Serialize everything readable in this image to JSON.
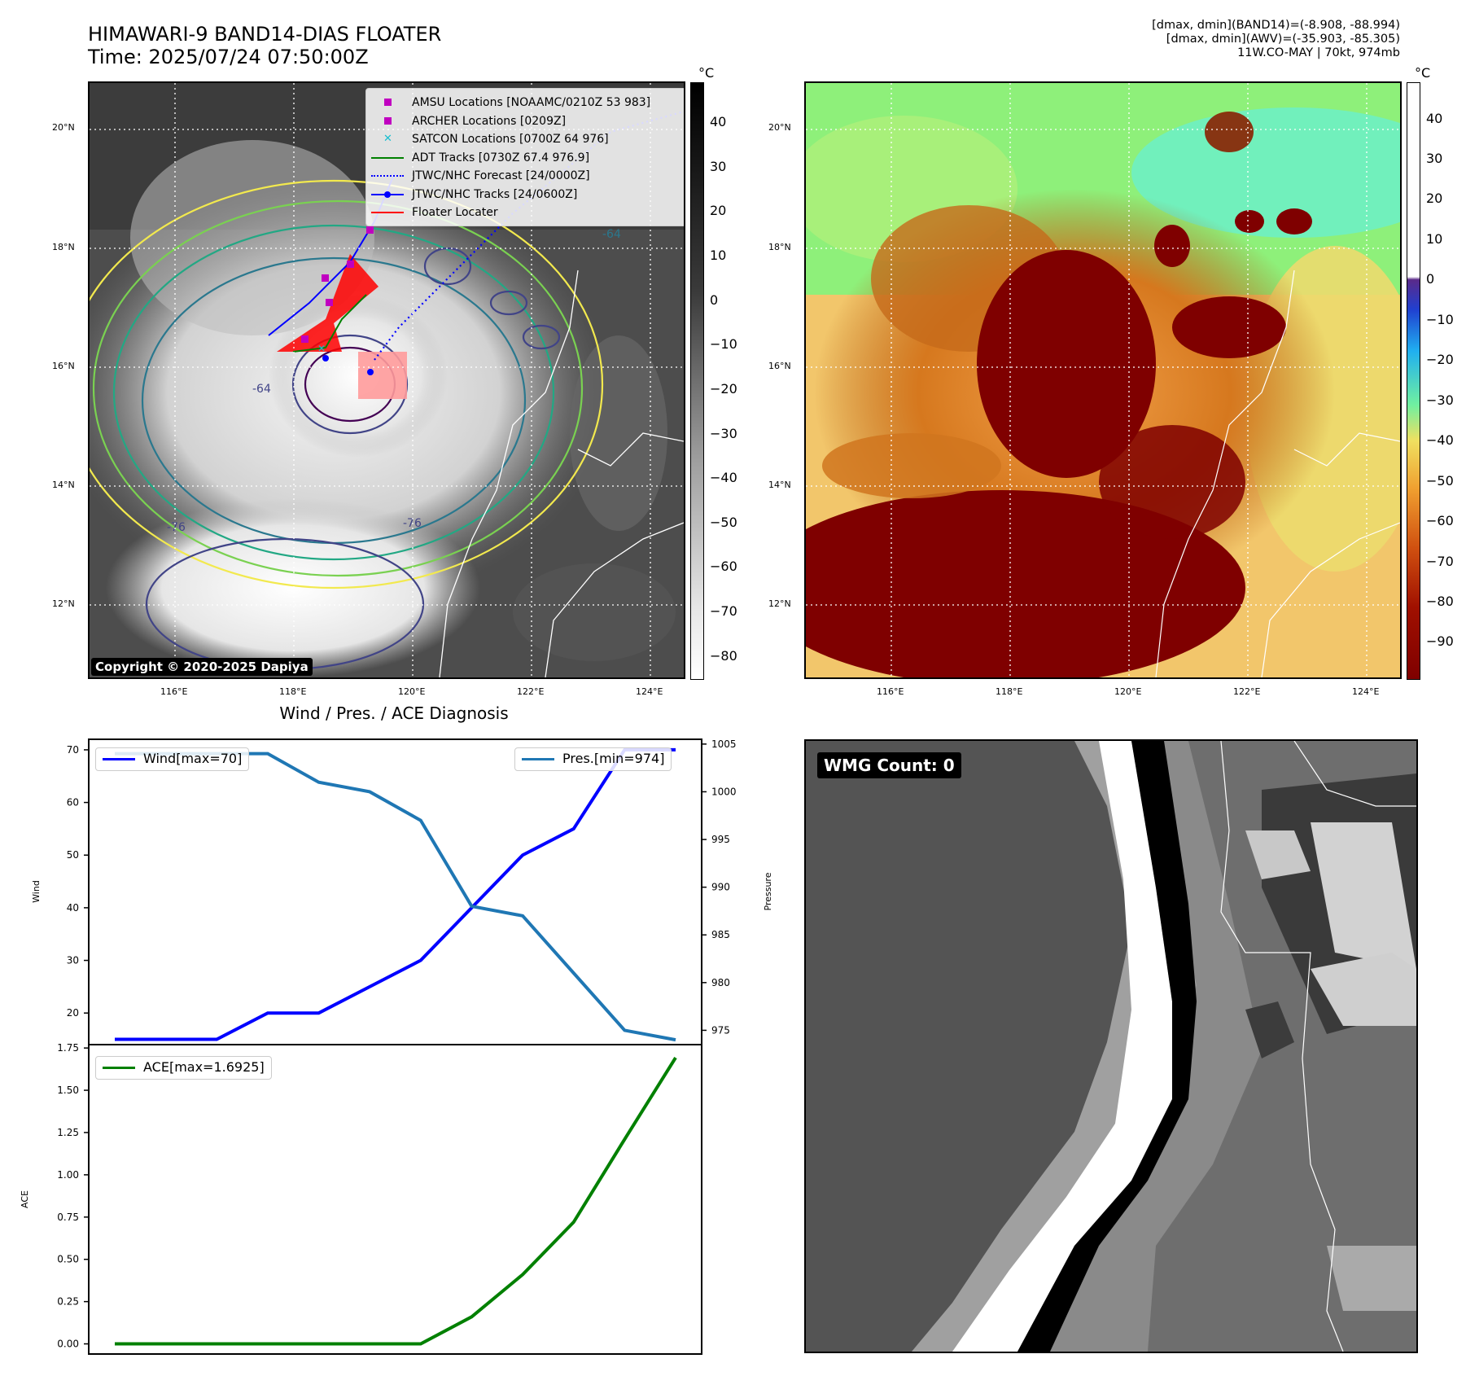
{
  "header": {
    "title_line1": "HIMAWARI-9 BAND14-DIAS FLOATER",
    "title_line2": "Time: 2025/07/24 07:50:00Z",
    "info_line1": "[dmax, dmin](BAND14)=(-8.908, -88.994)",
    "info_line2": "[dmax, dmin](AWV)=(-35.903, -85.305)",
    "info_line3": "11W.CO-MAY | 70kt, 974mb"
  },
  "map_axes": {
    "lon_ticks": [
      "116°E",
      "118°E",
      "120°E",
      "122°E",
      "124°E"
    ],
    "lat_ticks": [
      "20°N",
      "18°N",
      "16°N",
      "14°N",
      "12°N"
    ],
    "lon_range": [
      114.6,
      124.6
    ],
    "lat_range": [
      10.9,
      20.9
    ]
  },
  "ir_panel": {
    "colorbar_unit": "°C",
    "colorbar_ticks": [
      "40",
      "30",
      "20",
      "10",
      "0",
      "−10",
      "−20",
      "−30",
      "−40",
      "−50",
      "−60",
      "−70",
      "−80"
    ],
    "colorbar_range": [
      -85,
      49
    ],
    "copyright": "Copyright © 2020-2025 Dapiya",
    "contour_labels": [
      "-64",
      "-64",
      "-76",
      "-76",
      "-64"
    ],
    "legend": [
      {
        "label": "AMSU Locations [NOAAMC/0210Z 53 983]",
        "symbol": "square",
        "color": "#c000c0"
      },
      {
        "label": "ARCHER Locations [0209Z]",
        "symbol": "square",
        "color": "#c000c0"
      },
      {
        "label": "SATCON Locations [0700Z 64 976]",
        "symbol": "x",
        "color": "#17becf"
      },
      {
        "label": "ADT Tracks [0730Z 67.4 976.9]",
        "symbol": "line",
        "color": "#008000"
      },
      {
        "label": "JTWC/NHC Forecast [24/0000Z]",
        "symbol": "dotted",
        "color": "#0000ff"
      },
      {
        "label": "JTWC/NHC Tracks [24/0600Z]",
        "symbol": "line-dot",
        "color": "#0000ff"
      },
      {
        "label": "Floater Locater",
        "symbol": "line",
        "color": "#ff0000"
      }
    ]
  },
  "awv_panel": {
    "colorbar_unit": "°C",
    "colorbar_ticks": [
      "40",
      "30",
      "20",
      "10",
      "0",
      "−10",
      "−20",
      "−30",
      "−40",
      "−50",
      "−60",
      "−70",
      "−80",
      "−90"
    ],
    "colorbar_range": [
      -99,
      49
    ]
  },
  "diag_title": "Wind / Pres. / ACE Diagnosis",
  "wmg_panel": {
    "badge": "WMG Count: 0"
  },
  "chart_data": [
    {
      "type": "line",
      "ylabel": "Wind",
      "y2label": "Pressure",
      "ylim": [
        14,
        72
      ],
      "y2lim": [
        973.5,
        1005.5
      ],
      "yticks": [
        "70",
        "60",
        "50",
        "40",
        "30",
        "20"
      ],
      "y2ticks": [
        "1005",
        "1000",
        "995",
        "990",
        "985",
        "980",
        "975"
      ],
      "x": [
        0,
        1,
        2,
        3,
        4,
        5,
        6,
        7,
        8,
        9,
        10,
        11
      ],
      "series": [
        {
          "name": "Wind[max=70]",
          "axis": "left",
          "color": "#0000ff",
          "values": [
            15,
            15,
            15,
            20,
            20,
            25,
            30,
            40,
            50,
            55,
            70,
            70
          ]
        },
        {
          "name": "Pres.[min=974]",
          "axis": "right",
          "color": "#1f77b4",
          "values": [
            1004,
            1004,
            1004,
            1004,
            1001,
            1000,
            997,
            988,
            987,
            981,
            975,
            974
          ]
        }
      ]
    },
    {
      "type": "line",
      "ylabel": "ACE",
      "ylim": [
        -0.06,
        1.77
      ],
      "yticks": [
        "1.75",
        "1.50",
        "1.25",
        "1.00",
        "0.75",
        "0.50",
        "0.25",
        "0.00"
      ],
      "x": [
        0,
        1,
        2,
        3,
        4,
        5,
        6,
        7,
        8,
        9,
        10,
        11
      ],
      "series": [
        {
          "name": "ACE[max=1.6925]",
          "color": "#008000",
          "values": [
            0,
            0,
            0,
            0,
            0,
            0,
            0,
            0.16,
            0.41,
            0.72,
            1.21,
            1.6925
          ]
        }
      ]
    }
  ]
}
